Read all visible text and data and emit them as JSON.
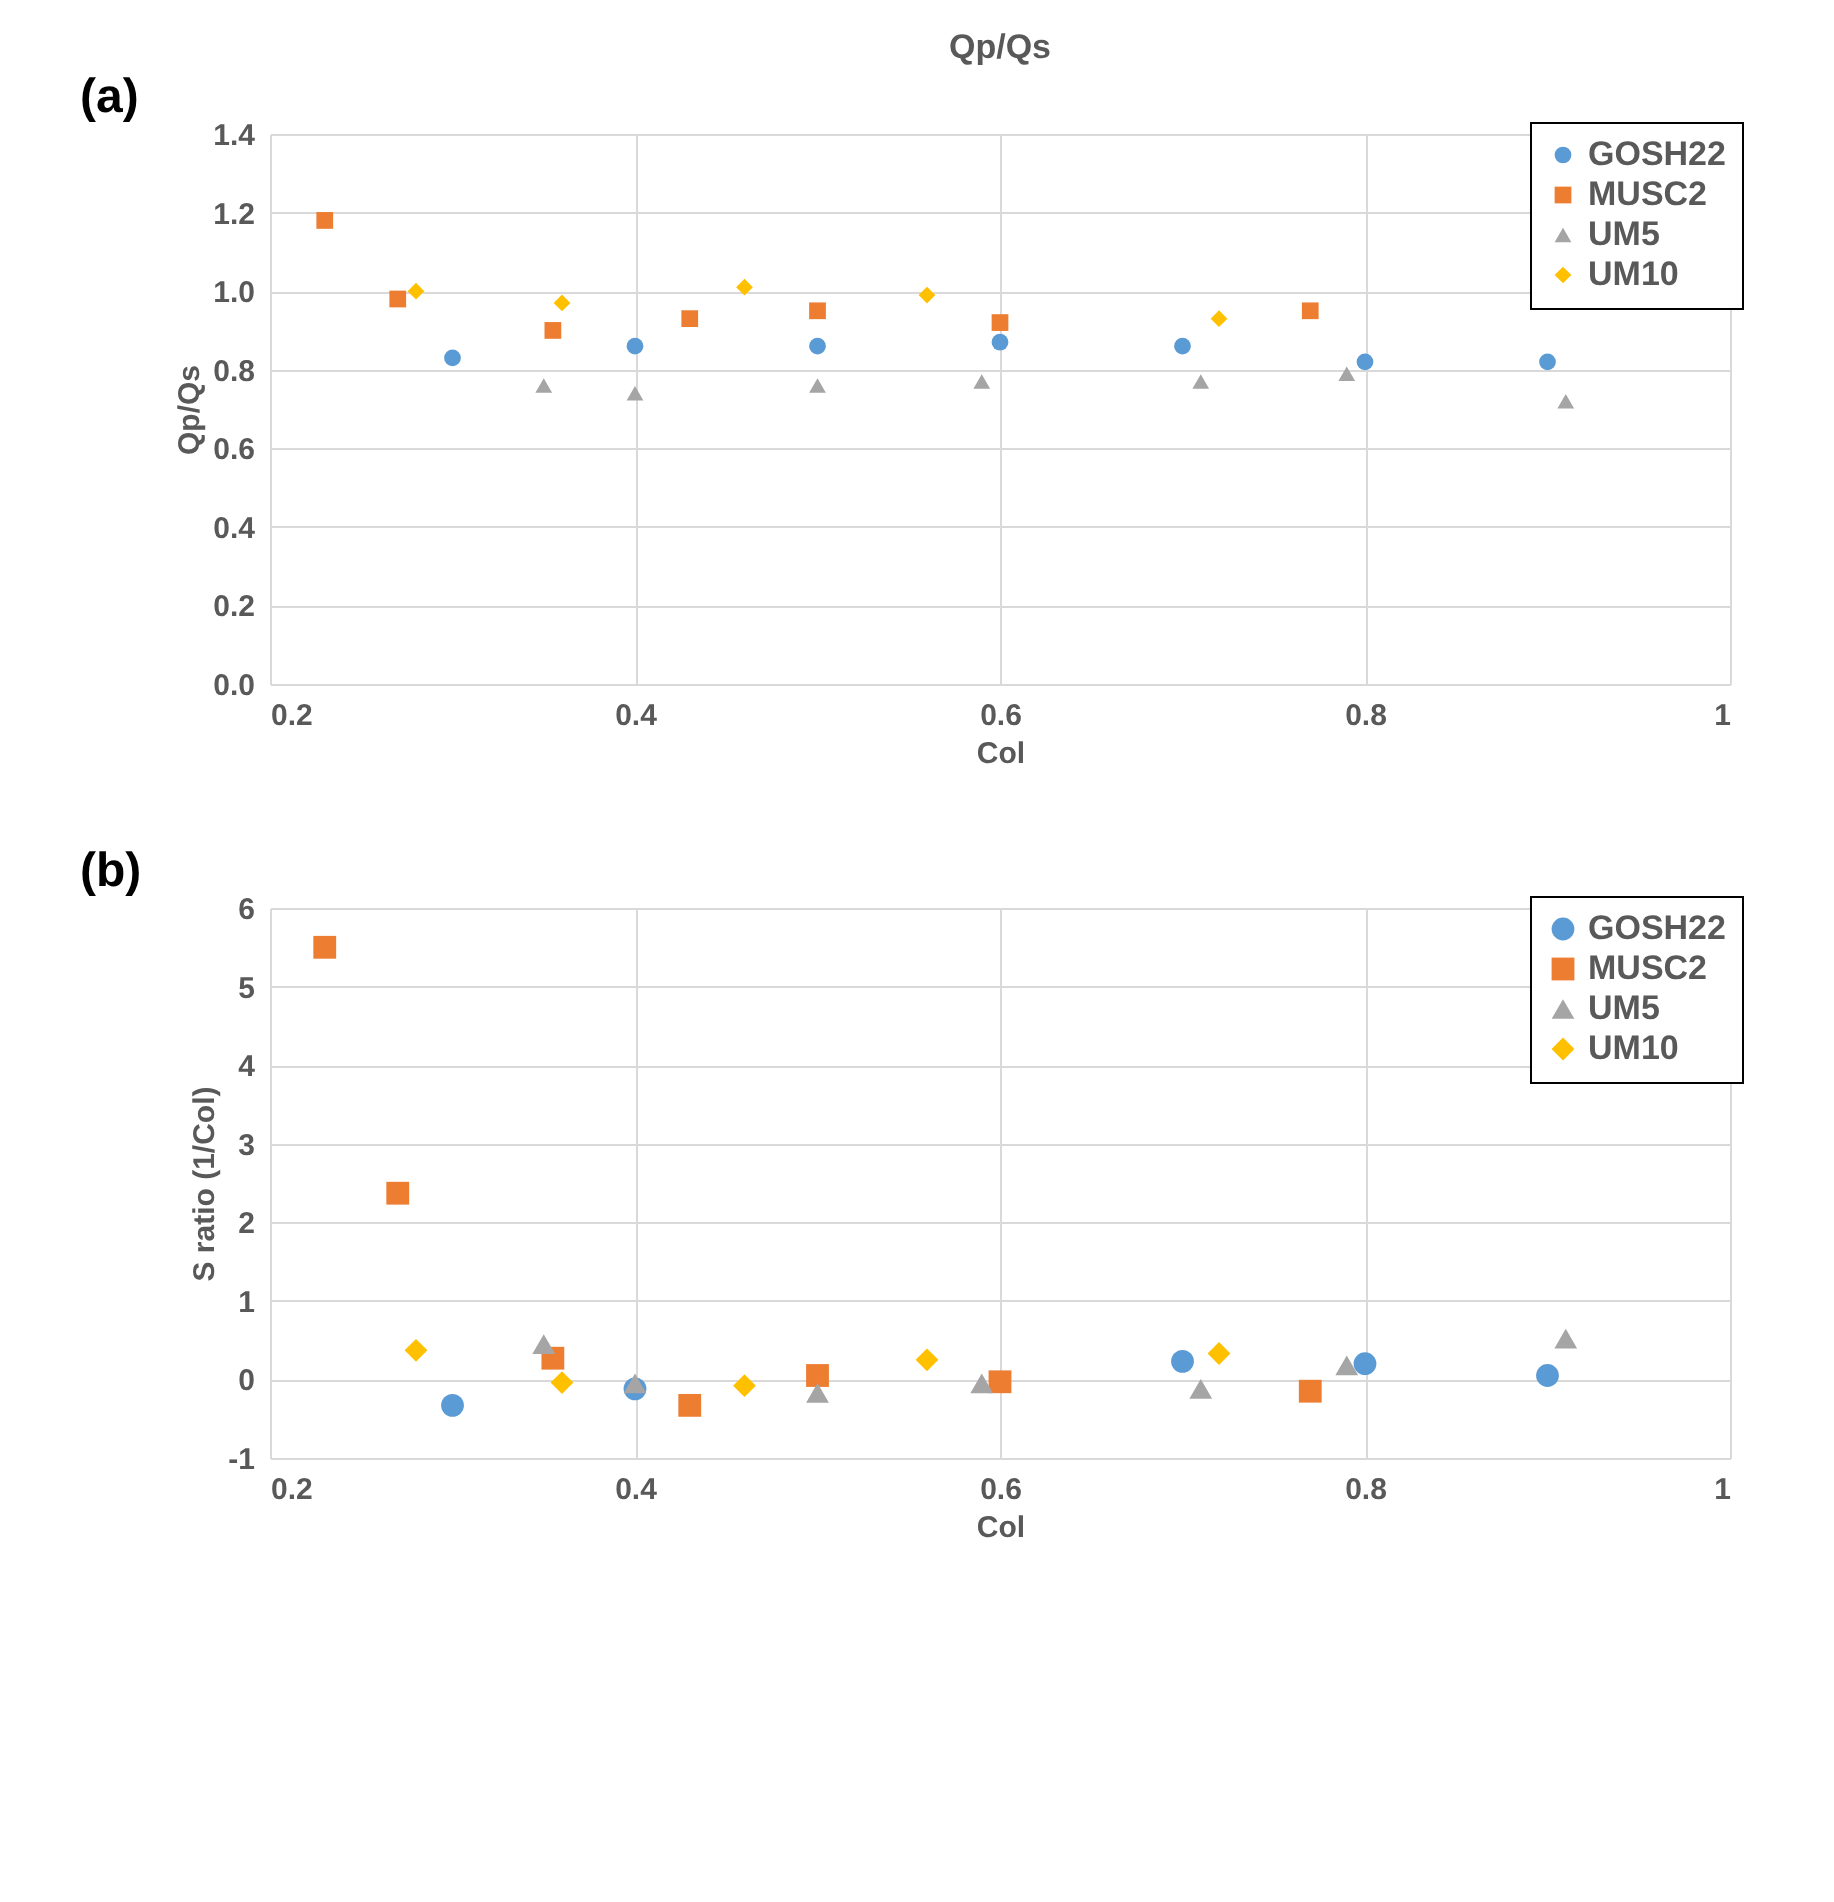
{
  "chart_data": [
    {
      "type": "scatter",
      "title": "Qp/Qs",
      "xlabel": "Col",
      "ylabel": "Qp/Qs",
      "annotations": [
        "(a)"
      ],
      "grid": true,
      "legend": "top right",
      "xlim": [
        0.2,
        1
      ],
      "xticks": [
        0.2,
        0.4,
        0.6,
        0.8,
        1
      ],
      "ylim": [
        0,
        1.4
      ],
      "yticks": [
        {
          "value": 0,
          "label": "0.0"
        },
        0.2,
        0.4,
        0.6,
        0.8,
        {
          "value": 1,
          "label": "1.0"
        },
        1.2,
        1.4
      ],
      "series": [
        {
          "name": "GOSH22",
          "color": "#5b9bd5",
          "marker": "circle",
          "x": [
            0.3,
            0.4,
            0.5,
            0.6,
            0.7,
            0.8,
            0.9
          ],
          "values": [
            0.83,
            0.86,
            0.86,
            0.87,
            0.86,
            0.82,
            0.82
          ]
        },
        {
          "name": "MUSC2",
          "color": "#ed7d31",
          "marker": "square",
          "x": [
            0.23,
            0.27,
            0.355,
            0.43,
            0.5,
            0.6,
            0.77
          ],
          "values": [
            1.18,
            0.98,
            0.9,
            0.93,
            0.95,
            0.92,
            0.95
          ]
        },
        {
          "name": "UM5",
          "color": "#a5a5a5",
          "marker": "triangle",
          "x": [
            0.35,
            0.4,
            0.5,
            0.59,
            0.71,
            0.79,
            0.91
          ],
          "values": [
            0.76,
            0.74,
            0.76,
            0.77,
            0.77,
            0.79,
            0.72
          ]
        },
        {
          "name": "UM10",
          "color": "#ffc000",
          "marker": "diamond",
          "x": [
            0.28,
            0.36,
            0.46,
            0.56,
            0.72
          ],
          "values": [
            1.0,
            0.97,
            1.01,
            0.99,
            0.93
          ]
        }
      ]
    },
    {
      "type": "scatter",
      "xlabel": "Col",
      "ylabel": "S ratio (1/Col)",
      "annotations": [
        "(b)"
      ],
      "grid": true,
      "legend": "top right",
      "xlim": [
        0.2,
        1
      ],
      "xticks": [
        0.2,
        0.4,
        0.6,
        0.8,
        1
      ],
      "ylim": [
        -1,
        6
      ],
      "yticks": [
        -1,
        0,
        1,
        2,
        3,
        4,
        5,
        6
      ],
      "series": [
        {
          "name": "GOSH22",
          "color": "#5b9bd5",
          "marker": "circle",
          "x": [
            0.3,
            0.4,
            0.5,
            0.6,
            0.7,
            0.8,
            0.9
          ],
          "values": [
            -0.33,
            -0.12,
            null,
            null,
            0.23,
            0.2,
            0.05
          ]
        },
        {
          "name": "MUSC2",
          "color": "#ed7d31",
          "marker": "square",
          "x": [
            0.23,
            0.27,
            0.355,
            0.43,
            0.5,
            0.6,
            0.77
          ],
          "values": [
            5.5,
            2.37,
            0.27,
            -0.33,
            0.05,
            -0.03,
            -0.15
          ]
        },
        {
          "name": "UM5",
          "color": "#a5a5a5",
          "marker": "triangle",
          "x": [
            0.35,
            0.4,
            0.5,
            0.59,
            0.71,
            0.79,
            0.91
          ],
          "values": [
            0.45,
            -0.05,
            -0.17,
            -0.05,
            -0.12,
            0.18,
            0.52
          ]
        },
        {
          "name": "UM10",
          "color": "#ffc000",
          "marker": "diamond",
          "x": [
            0.28,
            0.36,
            0.46,
            0.56,
            0.72
          ],
          "values": [
            0.37,
            -0.04,
            -0.08,
            0.25,
            0.33
          ]
        }
      ]
    }
  ]
}
